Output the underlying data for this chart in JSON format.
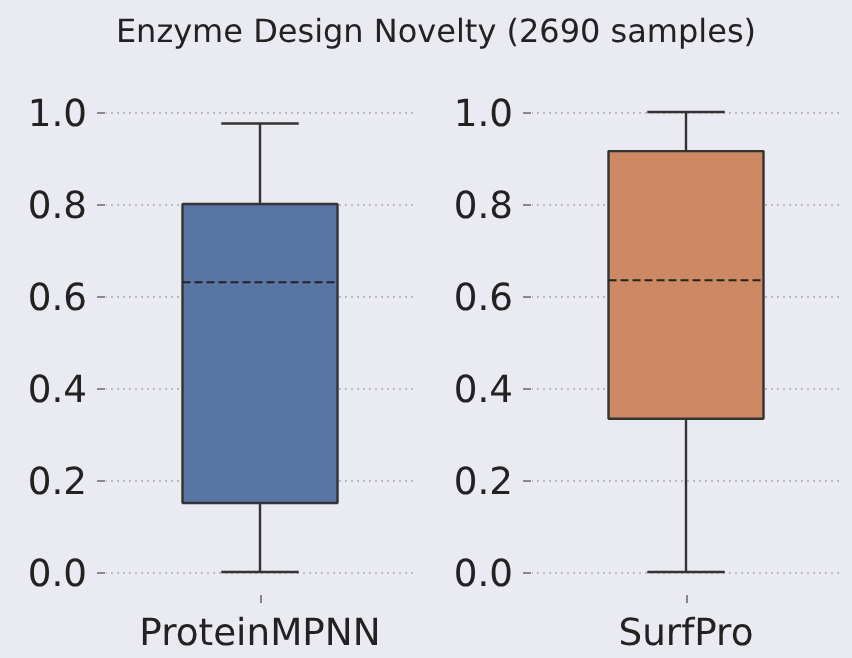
{
  "chart_data": [
    {
      "type": "box",
      "title": "Enzyme Design Novelty (2690 samples)",
      "categories": [
        "ProteinMPNN"
      ],
      "ylim": [
        -0.05,
        1.05
      ],
      "yticks": [
        {
          "value": 0,
          "label": "0.0"
        },
        {
          "value": 0.2,
          "label": "0.2"
        },
        {
          "value": 0.4,
          "label": "0.4"
        },
        {
          "value": 0.6,
          "label": "0.6"
        },
        {
          "value": 0.8,
          "label": "0.8"
        },
        {
          "value": 1,
          "label": "1.0"
        }
      ],
      "grid": "y",
      "colors": [
        "#5875a4"
      ],
      "boxes": [
        {
          "low": 0,
          "q1": 0.15,
          "median": 0.63,
          "q3": 0.8,
          "high": 0.975
        }
      ]
    },
    {
      "type": "box",
      "categories": [
        "SurfPro"
      ],
      "ylim": [
        -0.05,
        1.05
      ],
      "yticks": [
        {
          "value": 0,
          "label": "0.0"
        },
        {
          "value": 0.2,
          "label": "0.2"
        },
        {
          "value": 0.4,
          "label": "0.4"
        },
        {
          "value": 0.6,
          "label": "0.6"
        },
        {
          "value": 0.8,
          "label": "0.8"
        },
        {
          "value": 1,
          "label": "1.0"
        }
      ],
      "grid": "y",
      "colors": [
        "#cc8963"
      ],
      "boxes": [
        {
          "low": 0,
          "q1": 0.333,
          "median": 0.634,
          "q3": 0.915,
          "high": 1.0
        }
      ]
    }
  ]
}
